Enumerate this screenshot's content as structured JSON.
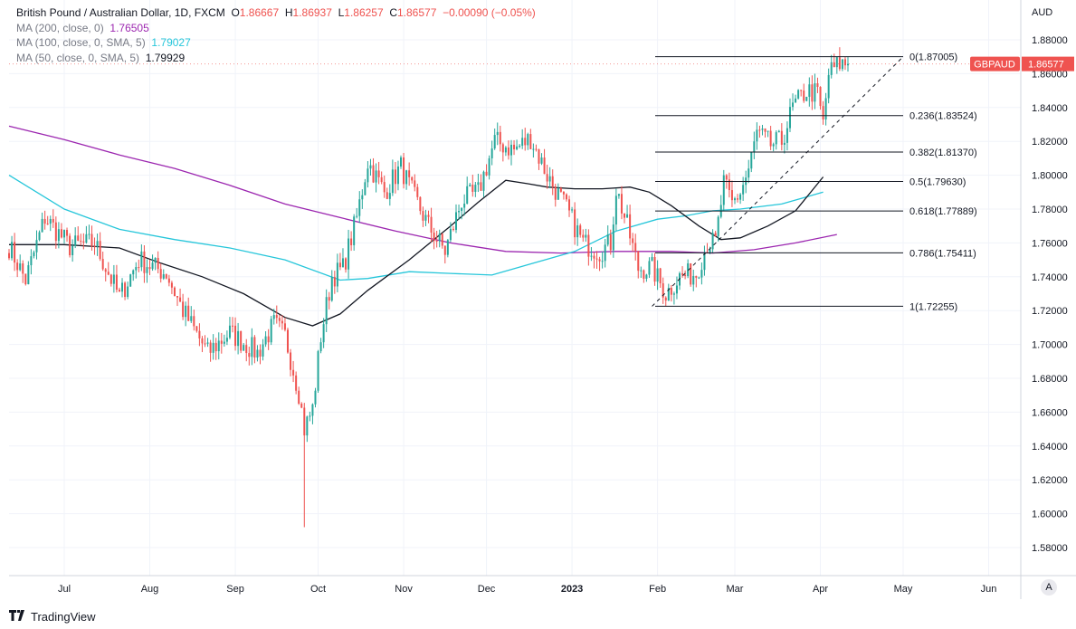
{
  "header": {
    "symbol": "British Pound / Australian Dollar, 1D, FXCM",
    "open_label": "O",
    "open": "1.86667",
    "high_label": "H",
    "high": "1.86937",
    "low_label": "L",
    "low": "1.86257",
    "close_label": "C",
    "close": "1.86577",
    "change": "−0.00090 (−0.05%)"
  },
  "indicators": [
    {
      "label": "MA (200, close, 0)",
      "value": "1.76505",
      "color": "#9c27b0"
    },
    {
      "label": "MA (100, close, 0, SMA, 5)",
      "value": "1.79027",
      "color": "#26c6da"
    },
    {
      "label": "MA (50, close, 0, SMA, 5)",
      "value": "1.79929",
      "color": "#131722"
    }
  ],
  "footer": {
    "brand": "TradingView",
    "auto_button": "A"
  },
  "colors": {
    "up": "#26a69a",
    "down": "#ef5350",
    "price_tag": "#ef5350",
    "grid": "#f0f3fa"
  },
  "chart_data": {
    "type": "candlestick",
    "title": "British Pound / Australian Dollar, 1D, FXCM",
    "currency": "AUD",
    "ylim": [
      1.565,
      1.893
    ],
    "y_ticks": [
      1.88,
      1.86,
      1.84,
      1.82,
      1.8,
      1.78,
      1.76,
      1.74,
      1.72,
      1.7,
      1.68,
      1.66,
      1.64,
      1.62,
      1.6,
      1.58
    ],
    "y_tick_labels": [
      "1.88000",
      "1.86000",
      "1.84000",
      "1.82000",
      "1.80000",
      "1.78000",
      "1.76000",
      "1.74000",
      "1.72000",
      "1.70000",
      "1.68000",
      "1.66000",
      "1.64000",
      "1.62000",
      "1.60000",
      "1.58000"
    ],
    "x_range": [
      0,
      324
    ],
    "x_ticks": [
      {
        "t": 20,
        "label": "Jul"
      },
      {
        "t": 51,
        "label": "Aug"
      },
      {
        "t": 82,
        "label": "Sep"
      },
      {
        "t": 112,
        "label": "Oct"
      },
      {
        "t": 143,
        "label": "Nov"
      },
      {
        "t": 173,
        "label": "Dec"
      },
      {
        "t": 204,
        "label": "2023"
      },
      {
        "t": 235,
        "label": "Feb"
      },
      {
        "t": 263,
        "label": "Mar"
      },
      {
        "t": 294,
        "label": "Apr"
      },
      {
        "t": 324,
        "label": "May"
      },
      {
        "t": 355,
        "label": "Jun"
      }
    ],
    "price_tag": {
      "label": "GBPAUD",
      "value": "1.86577",
      "price": 1.86577
    },
    "candle_anchors": [
      [
        0,
        1.758
      ],
      [
        6,
        1.738
      ],
      [
        13,
        1.775
      ],
      [
        22,
        1.758
      ],
      [
        31,
        1.76
      ],
      [
        40,
        1.728
      ],
      [
        47,
        1.75
      ],
      [
        57,
        1.742
      ],
      [
        63,
        1.72
      ],
      [
        72,
        1.695
      ],
      [
        80,
        1.707
      ],
      [
        90,
        1.695
      ],
      [
        96,
        1.712
      ],
      [
        100,
        1.705
      ],
      [
        105,
        1.672
      ],
      [
        107,
        1.65
      ],
      [
        110,
        1.662
      ],
      [
        113,
        1.705
      ],
      [
        117,
        1.74
      ],
      [
        121,
        1.745
      ],
      [
        126,
        1.775
      ],
      [
        130,
        1.808
      ],
      [
        136,
        1.79
      ],
      [
        142,
        1.805
      ],
      [
        146,
        1.79
      ],
      [
        152,
        1.77
      ],
      [
        158,
        1.755
      ],
      [
        164,
        1.785
      ],
      [
        170,
        1.79
      ],
      [
        176,
        1.82
      ],
      [
        183,
        1.815
      ],
      [
        189,
        1.822
      ],
      [
        195,
        1.8
      ],
      [
        202,
        1.78
      ],
      [
        208,
        1.76
      ],
      [
        214,
        1.755
      ],
      [
        218,
        1.76
      ],
      [
        220,
        1.792
      ],
      [
        224,
        1.77
      ],
      [
        228,
        1.745
      ],
      [
        233,
        1.745
      ],
      [
        238,
        1.73
      ],
      [
        243,
        1.74
      ],
      [
        249,
        1.742
      ],
      [
        253,
        1.76
      ],
      [
        256,
        1.76
      ],
      [
        259,
        1.795
      ],
      [
        262,
        1.783
      ],
      [
        265,
        1.79
      ],
      [
        268,
        1.803
      ],
      [
        271,
        1.825
      ],
      [
        276,
        1.818
      ],
      [
        280,
        1.82
      ],
      [
        284,
        1.84
      ],
      [
        289,
        1.85
      ],
      [
        293,
        1.848
      ],
      [
        295,
        1.83
      ],
      [
        297,
        1.86
      ],
      [
        301,
        1.866
      ],
      [
        304,
        1.86577
      ]
    ],
    "wick_extremes": [
      {
        "t": 107,
        "low": 1.592
      },
      {
        "t": 238,
        "low": 1.72255
      },
      {
        "t": 303,
        "high": 1.87005
      }
    ],
    "series": [
      {
        "name": "MA (200, close, 0)",
        "color": "#9c27b0",
        "last": 1.76505,
        "points": [
          [
            0,
            1.829
          ],
          [
            20,
            1.821
          ],
          [
            40,
            1.812
          ],
          [
            60,
            1.804
          ],
          [
            80,
            1.794
          ],
          [
            100,
            1.783
          ],
          [
            120,
            1.775
          ],
          [
            140,
            1.767
          ],
          [
            160,
            1.76
          ],
          [
            180,
            1.755
          ],
          [
            200,
            1.754
          ],
          [
            220,
            1.755
          ],
          [
            240,
            1.755
          ],
          [
            255,
            1.754
          ],
          [
            270,
            1.756
          ],
          [
            285,
            1.76
          ],
          [
            300,
            1.765
          ]
        ]
      },
      {
        "name": "MA (100, close, 0, SMA, 5)",
        "color": "#26c6da",
        "last": 1.79027,
        "points": [
          [
            0,
            1.8
          ],
          [
            20,
            1.78
          ],
          [
            40,
            1.768
          ],
          [
            60,
            1.762
          ],
          [
            80,
            1.757
          ],
          [
            100,
            1.75
          ],
          [
            120,
            1.738
          ],
          [
            130,
            1.739
          ],
          [
            145,
            1.743
          ],
          [
            160,
            1.742
          ],
          [
            175,
            1.741
          ],
          [
            190,
            1.748
          ],
          [
            205,
            1.755
          ],
          [
            220,
            1.767
          ],
          [
            235,
            1.774
          ],
          [
            245,
            1.776
          ],
          [
            255,
            1.779
          ],
          [
            265,
            1.78
          ],
          [
            280,
            1.783
          ],
          [
            295,
            1.79
          ]
        ]
      },
      {
        "name": "MA (50, close, 0, SMA, 5)",
        "color": "#131722",
        "last": 1.79929,
        "points": [
          [
            0,
            1.759
          ],
          [
            20,
            1.759
          ],
          [
            40,
            1.757
          ],
          [
            55,
            1.748
          ],
          [
            70,
            1.74
          ],
          [
            85,
            1.73
          ],
          [
            100,
            1.716
          ],
          [
            110,
            1.711
          ],
          [
            120,
            1.718
          ],
          [
            130,
            1.732
          ],
          [
            145,
            1.75
          ],
          [
            160,
            1.77
          ],
          [
            170,
            1.784
          ],
          [
            180,
            1.797
          ],
          [
            188,
            1.795
          ],
          [
            195,
            1.793
          ],
          [
            205,
            1.792
          ],
          [
            215,
            1.792
          ],
          [
            225,
            1.793
          ],
          [
            232,
            1.79
          ],
          [
            240,
            1.782
          ],
          [
            250,
            1.77
          ],
          [
            258,
            1.762
          ],
          [
            265,
            1.763
          ],
          [
            275,
            1.77
          ],
          [
            285,
            1.779
          ],
          [
            295,
            1.799
          ]
        ]
      }
    ],
    "fibonacci": {
      "start": {
        "t": 233,
        "price": 1.72255
      },
      "end": {
        "t": 318,
        "price": 1.87005
      },
      "levels": [
        {
          "ratio": "0",
          "price": 1.87005,
          "label": "0(1.87005)"
        },
        {
          "ratio": "0.236",
          "price": 1.83524,
          "label": "0.236(1.83524)"
        },
        {
          "ratio": "0.382",
          "price": 1.8137,
          "label": "0.382(1.81370)"
        },
        {
          "ratio": "0.5",
          "price": 1.7963,
          "label": "0.5(1.79630)"
        },
        {
          "ratio": "0.618",
          "price": 1.77889,
          "label": "0.618(1.77889)"
        },
        {
          "ratio": "0.786",
          "price": 1.75411,
          "label": "0.786(1.75411)"
        },
        {
          "ratio": "1",
          "price": 1.72255,
          "label": "1(1.72255)"
        }
      ]
    }
  }
}
